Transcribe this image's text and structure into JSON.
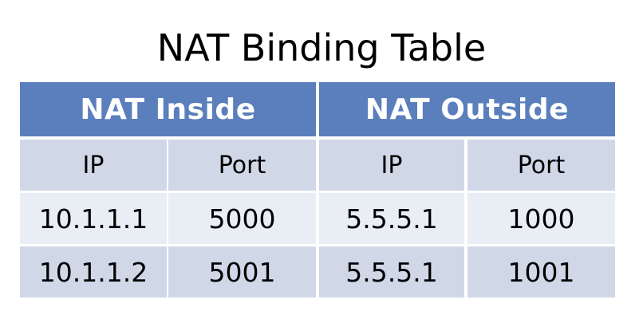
{
  "title": "NAT Binding Table",
  "groups": {
    "inside": "NAT Inside",
    "outside": "NAT Outside"
  },
  "columns": [
    "IP",
    "Port",
    "IP",
    "Port"
  ],
  "rows": [
    [
      "10.1.1.1",
      "5000",
      "5.5.5.1",
      "1000"
    ],
    [
      "10.1.1.2",
      "5001",
      "5.5.5.1",
      "1001"
    ]
  ],
  "colors": {
    "header": "#5b7fbc",
    "subheader": "#d0d8e8",
    "row_light": "#e9edf4",
    "row_dark": "#d0d8e8"
  }
}
